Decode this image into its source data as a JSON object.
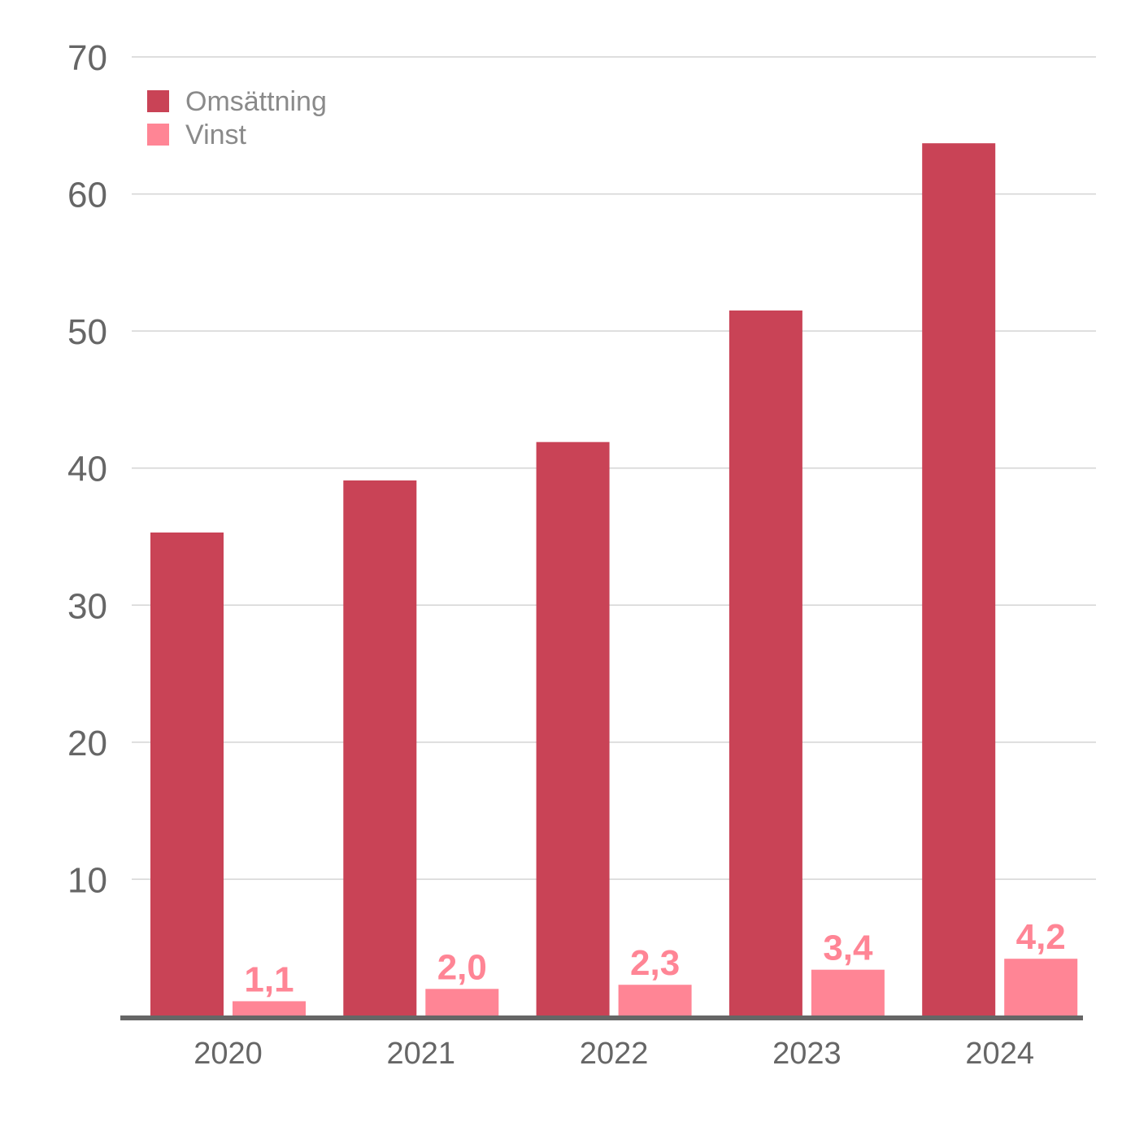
{
  "chart_data": {
    "type": "bar",
    "categories": [
      "2020",
      "2021",
      "2022",
      "2023",
      "2024"
    ],
    "series": [
      {
        "name": "Omsättning",
        "color": "#c94356",
        "values": [
          35.3,
          39.1,
          41.9,
          51.5,
          63.7
        ],
        "labels": null
      },
      {
        "name": "Vinst",
        "color": "#ff8595",
        "values": [
          1.1,
          2.0,
          2.3,
          3.4,
          4.2
        ],
        "labels": [
          "1,1",
          "2,0",
          "2,3",
          "3,4",
          "4,2"
        ]
      }
    ],
    "yticks": [
      "10",
      "20",
      "30",
      "40",
      "50",
      "60",
      "70"
    ],
    "ylim": [
      0,
      70
    ],
    "grid": true,
    "legend": "top-left",
    "title": "",
    "xlabel": "",
    "ylabel": ""
  }
}
